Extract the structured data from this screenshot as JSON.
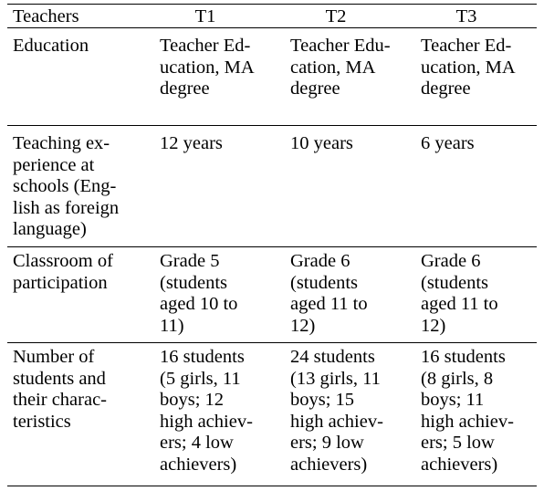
{
  "table": {
    "header": {
      "label": "Teachers",
      "t1": "T1",
      "t2": "T2",
      "t3": "T3"
    },
    "rows": [
      {
        "label": "Education",
        "t1": "Teacher Ed-\nucation, MA\ndegree",
        "t2": "Teacher Edu-\ncation, MA\ndegree",
        "t3": "Teacher Ed-\nucation, MA\ndegree"
      },
      {
        "label": "Teaching ex-\nperience at\nschools (Eng-\nlish as foreign\nlanguage)",
        "t1": "12 years",
        "t2": "10 years",
        "t3": "6 years"
      },
      {
        "label": "Classroom of\nparticipation",
        "t1": "Grade 5\n(students\naged 10 to\n11)",
        "t2": "Grade 6\n(students\naged 11 to\n12)",
        "t3": "Grade 6\n(students\naged 11 to\n12)"
      },
      {
        "label": "Number of\nstudents and\ntheir charac-\nteristics",
        "t1": "16 students\n(5 girls, 11\nboys; 12\nhigh achiev-\ners; 4 low\nachievers)",
        "t2": "24 students\n(13 girls, 11\nboys; 15\nhigh achiev-\ners; 9 low\nachievers)",
        "t3": "16 students\n(8 girls, 8\nboys; 11\nhigh achiev-\ners; 5 low\nachievers)"
      }
    ]
  }
}
